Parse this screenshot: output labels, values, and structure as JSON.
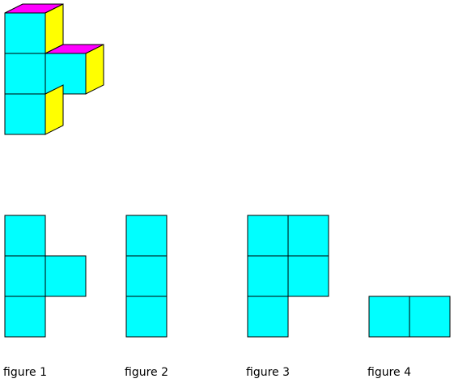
{
  "colors": {
    "front": "#00ffff",
    "top": "#ff00ff",
    "side": "#ffff00",
    "edge": "#000000",
    "background": "#ffffff"
  },
  "solid": {
    "description_cells": "front-facing unit cubes arranged as in figure 1"
  },
  "figures": [
    {
      "label": "figure 1"
    },
    {
      "label": "figure 2"
    },
    {
      "label": "figure 3"
    },
    {
      "label": "figure 4"
    }
  ]
}
